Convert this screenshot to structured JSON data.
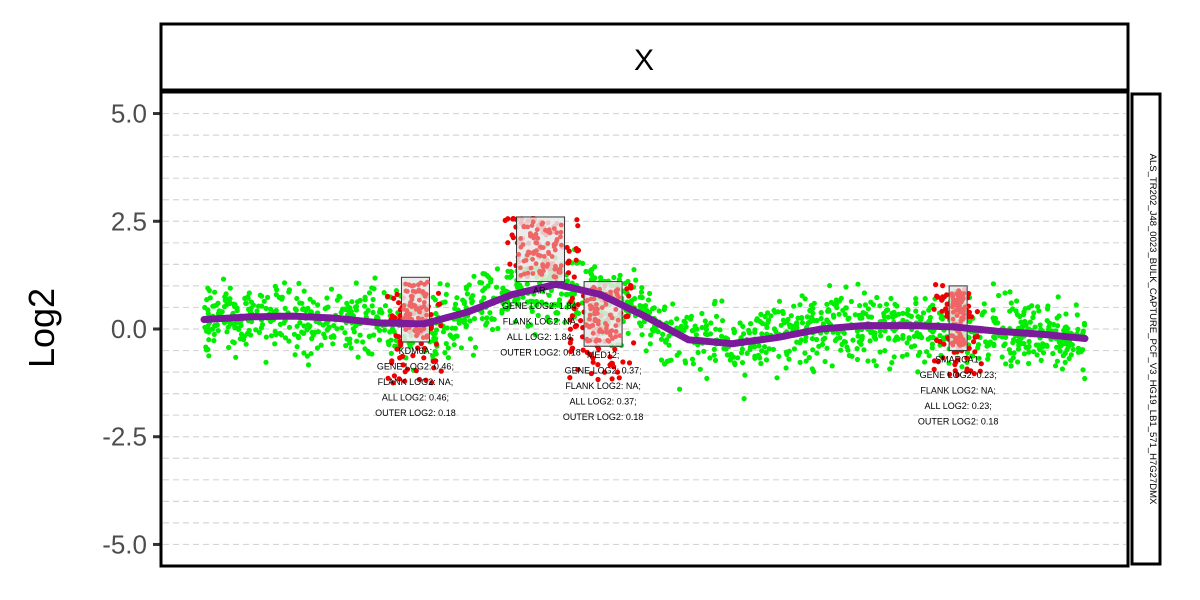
{
  "chart_data": {
    "type": "scatter",
    "facet_title": "X",
    "ylabel": "Log2",
    "xlabel": "",
    "ylim": [
      -5.5,
      5.5
    ],
    "y_ticks": [
      5.0,
      2.5,
      0.0,
      -2.5,
      -5.0
    ],
    "y_tick_labels": [
      "5.0",
      "2.5",
      "0.0",
      "-2.5",
      "-5.0"
    ],
    "grid": "horizontal dashed",
    "sample_label": "ALS_TR202_J48_0023_BULK_CAPTURE_PCF_V3_HG19_LB1_571_H7G27DMX",
    "colors": {
      "background_points": "#00ee00",
      "gene_points": "#ee0000",
      "gene_box_fill": "#e8e8e8",
      "gene_box_points": "#ee6666",
      "smooth_line": "#7b1a9b",
      "grid": "#d6d6d6"
    },
    "smooth_trend": [
      {
        "x": 0.0,
        "y": 0.22
      },
      {
        "x": 0.05,
        "y": 0.28
      },
      {
        "x": 0.1,
        "y": 0.3
      },
      {
        "x": 0.15,
        "y": 0.25
      },
      {
        "x": 0.2,
        "y": 0.14
      },
      {
        "x": 0.25,
        "y": 0.12
      },
      {
        "x": 0.3,
        "y": 0.4
      },
      {
        "x": 0.35,
        "y": 0.8
      },
      {
        "x": 0.4,
        "y": 1.04
      },
      {
        "x": 0.45,
        "y": 0.8
      },
      {
        "x": 0.5,
        "y": 0.3
      },
      {
        "x": 0.55,
        "y": -0.25
      },
      {
        "x": 0.6,
        "y": -0.34
      },
      {
        "x": 0.65,
        "y": -0.2
      },
      {
        "x": 0.7,
        "y": 0.0
      },
      {
        "x": 0.75,
        "y": 0.08
      },
      {
        "x": 0.8,
        "y": 0.08
      },
      {
        "x": 0.85,
        "y": 0.05
      },
      {
        "x": 0.9,
        "y": -0.05
      },
      {
        "x": 0.95,
        "y": -0.12
      },
      {
        "x": 1.0,
        "y": -0.22
      }
    ],
    "genes": [
      {
        "name": "KDM6A",
        "x_center": 0.24,
        "box_ymin": -0.3,
        "box_ymax": 1.2,
        "spread_min": -1.3,
        "spread_max": 0.9,
        "label_lines": [
          "KDM6A;",
          "GENE LOG2: 0.46;",
          "FLANK LOG2: NA;",
          "ALL LOG2: 0.46;",
          "OUTER LOG2: 0.18"
        ]
      },
      {
        "name": "AR",
        "x_center": 0.382,
        "box_ymin": 1.1,
        "box_ymax": 2.6,
        "spread_min": 1.2,
        "spread_max": 2.6,
        "label_lines": [
          "AR;",
          "GENE LOG2: 1.84;",
          "FLANK LOG2: NA;",
          "ALL LOG2: 1.84;",
          "OUTER LOG2: 0.18"
        ]
      },
      {
        "name": "MED12",
        "x_center": 0.453,
        "box_ymin": -0.4,
        "box_ymax": 1.1,
        "spread_min": -1.3,
        "spread_max": 1.1,
        "label_lines": [
          "MED12;",
          "GENE LOG2: 0.37;",
          "FLANK LOG2: NA;",
          "ALL LOG2: 0.37;",
          "OUTER LOG2: 0.18"
        ]
      },
      {
        "name": "SMARCA1",
        "x_center": 0.856,
        "box_ymin": -0.5,
        "box_ymax": 1.0,
        "spread_min": -1.1,
        "spread_max": 1.1,
        "label_lines": [
          "SMARCA1;",
          "GENE LOG2: 0.23;",
          "FLANK LOG2: NA;",
          "ALL LOG2: 0.23;",
          "OUTER LOG2: 0.18"
        ]
      }
    ]
  }
}
